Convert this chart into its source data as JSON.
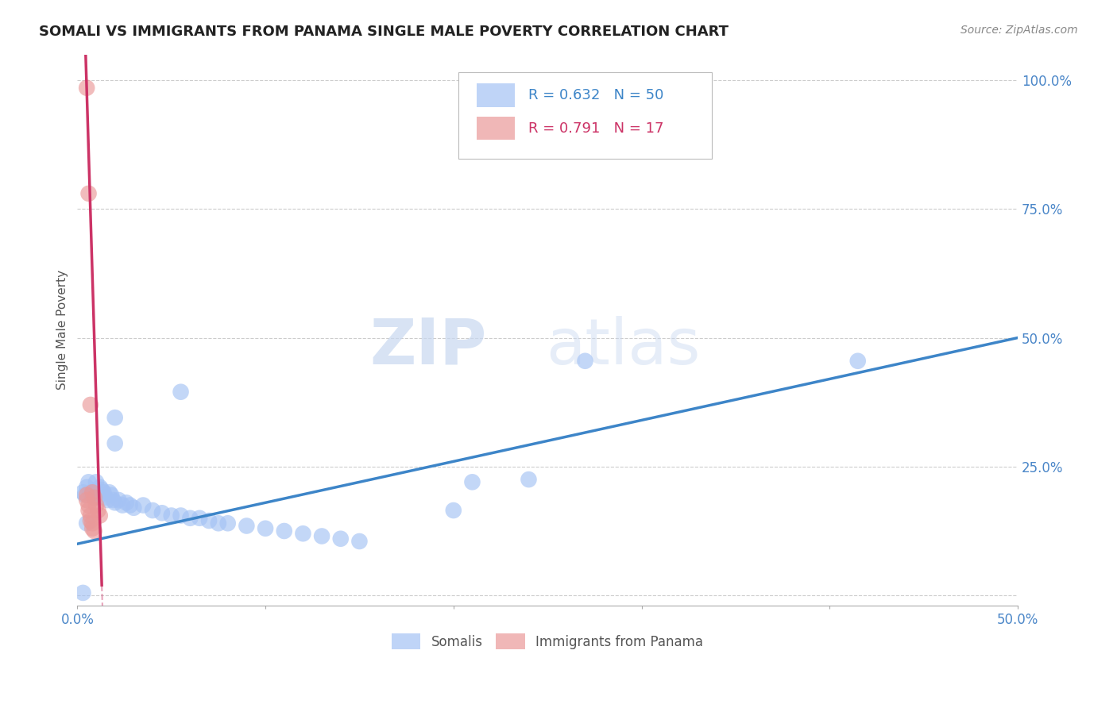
{
  "title": "SOMALI VS IMMIGRANTS FROM PANAMA SINGLE MALE POVERTY CORRELATION CHART",
  "source": "Source: ZipAtlas.com",
  "ylabel": "Single Male Poverty",
  "xlim": [
    0.0,
    0.5
  ],
  "ylim": [
    -0.02,
    1.05
  ],
  "xticks": [
    0.0,
    0.1,
    0.2,
    0.3,
    0.4,
    0.5
  ],
  "xtick_labels_show": [
    "0.0%",
    "",
    "",
    "",
    "",
    "50.0%"
  ],
  "yticks": [
    0.0,
    0.25,
    0.5,
    0.75,
    1.0
  ],
  "ytick_labels": [
    "",
    "25.0%",
    "50.0%",
    "75.0%",
    "100.0%"
  ],
  "somali_R": 0.632,
  "somali_N": 50,
  "panama_R": 0.791,
  "panama_N": 17,
  "somali_color": "#a4c2f4",
  "panama_color": "#ea9999",
  "somali_line_color": "#3d85c8",
  "panama_line_color": "#cc3366",
  "legend_somali_label": "Somalis",
  "legend_panama_label": "Immigrants from Panama",
  "somali_points": [
    [
      0.003,
      0.2
    ],
    [
      0.004,
      0.195
    ],
    [
      0.005,
      0.21
    ],
    [
      0.006,
      0.22
    ],
    [
      0.007,
      0.2
    ],
    [
      0.008,
      0.195
    ],
    [
      0.009,
      0.19
    ],
    [
      0.01,
      0.22
    ],
    [
      0.011,
      0.19
    ],
    [
      0.012,
      0.21
    ],
    [
      0.013,
      0.205
    ],
    [
      0.014,
      0.2
    ],
    [
      0.015,
      0.19
    ],
    [
      0.016,
      0.185
    ],
    [
      0.017,
      0.2
    ],
    [
      0.018,
      0.195
    ],
    [
      0.019,
      0.185
    ],
    [
      0.02,
      0.18
    ],
    [
      0.022,
      0.185
    ],
    [
      0.024,
      0.175
    ],
    [
      0.026,
      0.18
    ],
    [
      0.028,
      0.175
    ],
    [
      0.03,
      0.17
    ],
    [
      0.035,
      0.175
    ],
    [
      0.04,
      0.165
    ],
    [
      0.045,
      0.16
    ],
    [
      0.05,
      0.155
    ],
    [
      0.055,
      0.155
    ],
    [
      0.06,
      0.15
    ],
    [
      0.065,
      0.15
    ],
    [
      0.07,
      0.145
    ],
    [
      0.075,
      0.14
    ],
    [
      0.08,
      0.14
    ],
    [
      0.09,
      0.135
    ],
    [
      0.1,
      0.13
    ],
    [
      0.11,
      0.125
    ],
    [
      0.12,
      0.12
    ],
    [
      0.13,
      0.115
    ],
    [
      0.14,
      0.11
    ],
    [
      0.15,
      0.105
    ],
    [
      0.02,
      0.345
    ],
    [
      0.055,
      0.395
    ],
    [
      0.02,
      0.295
    ],
    [
      0.21,
      0.22
    ],
    [
      0.24,
      0.225
    ],
    [
      0.27,
      0.455
    ],
    [
      0.415,
      0.455
    ],
    [
      0.2,
      0.165
    ],
    [
      0.005,
      0.14
    ],
    [
      0.003,
      0.005
    ]
  ],
  "panama_points": [
    [
      0.005,
      0.985
    ],
    [
      0.006,
      0.78
    ],
    [
      0.007,
      0.37
    ],
    [
      0.008,
      0.2
    ],
    [
      0.009,
      0.19
    ],
    [
      0.01,
      0.175
    ],
    [
      0.011,
      0.165
    ],
    [
      0.012,
      0.155
    ],
    [
      0.005,
      0.195
    ],
    [
      0.005,
      0.185
    ],
    [
      0.006,
      0.175
    ],
    [
      0.006,
      0.165
    ],
    [
      0.007,
      0.155
    ],
    [
      0.007,
      0.145
    ],
    [
      0.008,
      0.14
    ],
    [
      0.008,
      0.13
    ],
    [
      0.009,
      0.125
    ]
  ],
  "somali_trendline": [
    0.0,
    0.5,
    0.1,
    0.5
  ],
  "watermark_zip": "ZIP",
  "watermark_atlas": "atlas",
  "background_color": "#ffffff",
  "grid_color": "#cccccc",
  "axis_color": "#aaaaaa",
  "tick_color": "#4a86c8",
  "ylabel_color": "#555555",
  "title_color": "#222222",
  "source_color": "#888888"
}
